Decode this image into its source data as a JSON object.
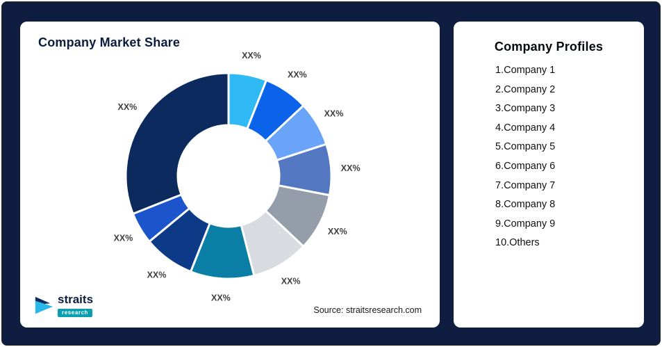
{
  "background_color": "#0e1d40",
  "left_panel": {
    "title": "Company Market Share",
    "source": "Source: straitsresearch.com"
  },
  "right_panel": {
    "title": "Company Profiles",
    "items": [
      "1.Company 1",
      "2.Company 2",
      "3.Company 3",
      "4.Company 4",
      "5.Company 5",
      "6.Company 6",
      "7.Company 7",
      "8.Company 8",
      "9.Company 9",
      "10.Others"
    ]
  },
  "logo": {
    "primary": "straits",
    "secondary": "research",
    "mark_colors": [
      "#0d2a5e",
      "#2ab7ea"
    ]
  },
  "chart_data": {
    "type": "pie",
    "subtype": "donut",
    "title": "Company Market Share",
    "source": "Source: straitsresearch.com",
    "legend": "none",
    "start_angle_deg": 0,
    "direction": "clockwise",
    "inner_radius_ratio": 0.49,
    "values_estimated": true,
    "slices": [
      {
        "label": "XX%",
        "value": 6,
        "color": "#2fb9f5"
      },
      {
        "label": "XX%",
        "value": 7,
        "color": "#0a63e8"
      },
      {
        "label": "XX%",
        "value": 7,
        "color": "#6aa4f8"
      },
      {
        "label": "XX%",
        "value": 8,
        "color": "#5377c1"
      },
      {
        "label": "XX%",
        "value": 9,
        "color": "#959dab"
      },
      {
        "label": "XX%",
        "value": 9,
        "color": "#d8dbdf"
      },
      {
        "label": "XX%",
        "value": 10,
        "color": "#0b7ea6"
      },
      {
        "label": "XX%",
        "value": 8,
        "color": "#0c3a86"
      },
      {
        "label": "XX%",
        "value": 5,
        "color": "#1c54cc"
      },
      {
        "label": "XX%",
        "value": 31,
        "color": "#0d2a5f"
      }
    ]
  }
}
